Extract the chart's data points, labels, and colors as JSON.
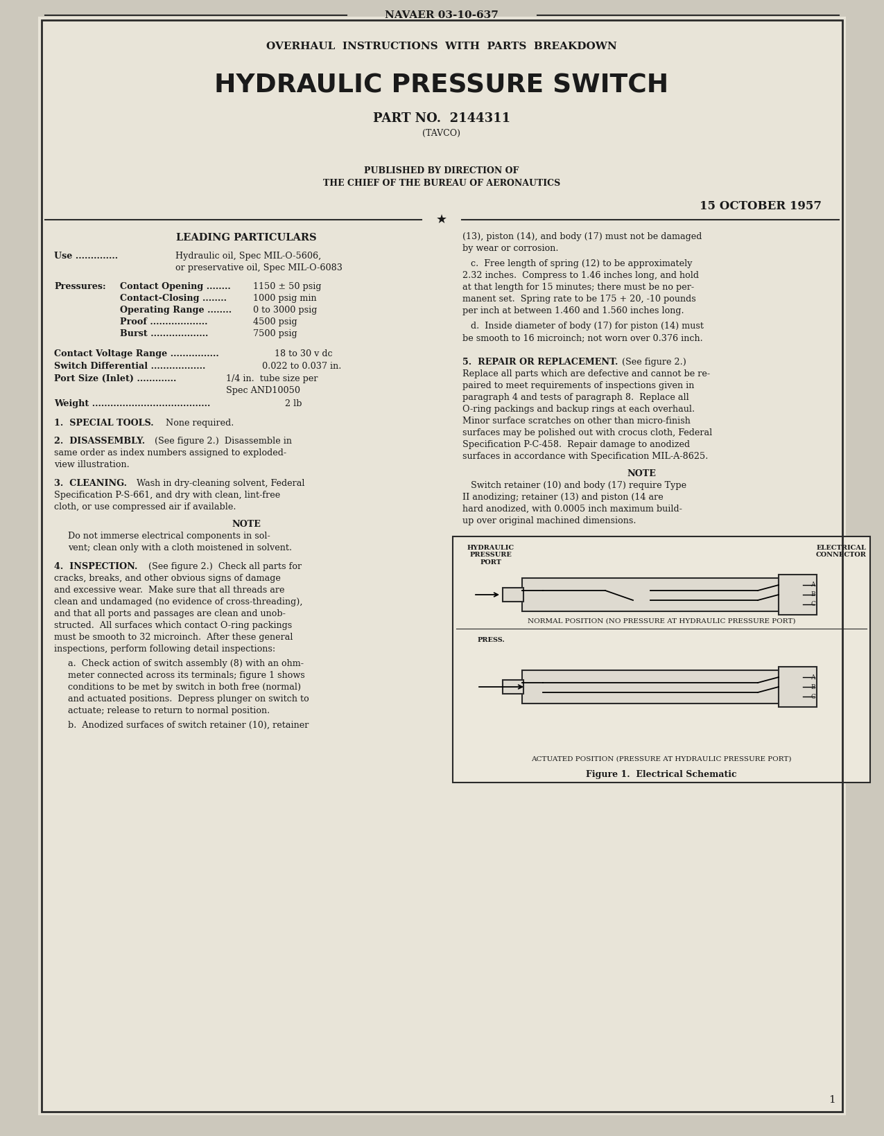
{
  "bg_color": "#ccc8bc",
  "page_bg": "#e8e4d8",
  "text_color": "#1a1a1a",
  "border_color": "#2a2a2a",
  "doc_number": "NAVAER 03-10-637",
  "subtitle": "OVERHAUL  INSTRUCTIONS  WITH  PARTS  BREAKDOWN",
  "title": "HYDRAULIC PRESSURE SWITCH",
  "part_no": "PART NO.  2144311",
  "tavco": "(TAVCO)",
  "published": "PUBLISHED BY DIRECTION OF",
  "bureau": "THE CHIEF OF THE BUREAU OF AERONAUTICS",
  "date": "15 OCTOBER 1957",
  "leading_particulars_title": "LEADING PARTICULARS",
  "fig1_caption1": "NORMAL POSITION (NO PRESSURE AT HYDRAULIC PRESSURE PORT)",
  "fig1_caption2": "ACTUATED POSITION (PRESSURE AT HYDRAULIC PRESSURE PORT)",
  "fig1_title": "Figure 1.  Electrical Schematic",
  "page_num": "1"
}
